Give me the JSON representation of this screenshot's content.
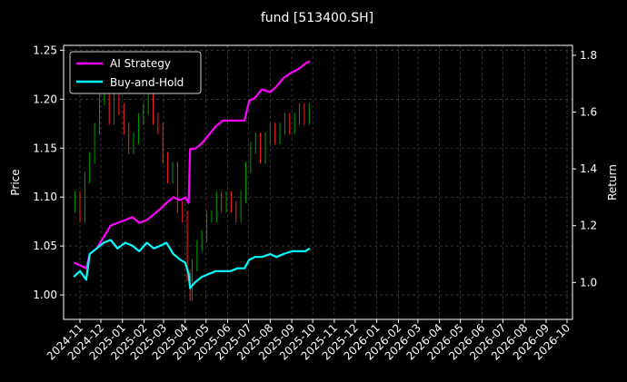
{
  "chart_data": {
    "type": "line",
    "title": "fund [513400.SH]",
    "xlabel": "",
    "ylabel": "Price",
    "ylabel_right": "Return",
    "ylim": [
      0.975,
      1.255
    ],
    "ylim_right": [
      0.87,
      1.835
    ],
    "grid": true,
    "legend_position": "top-left",
    "x_tick_labels": [
      "2024-11",
      "2024-12",
      "2025-01",
      "2025-02",
      "2025-03",
      "2025-04",
      "2025-05",
      "2025-06",
      "2025-07",
      "2025-08",
      "2025-09",
      "2025-10",
      "2025-11",
      "2025-12",
      "2026-01",
      "2026-02",
      "2026-03",
      "2026-04",
      "2026-05",
      "2026-06",
      "2026-07",
      "2026-08",
      "2026-09",
      "2026-10"
    ],
    "y_ticks_left": [
      "1.00",
      "1.05",
      "1.10",
      "1.15",
      "1.20",
      "1.25"
    ],
    "y_ticks_right": [
      "1.0",
      "1.2",
      "1.4",
      "1.6",
      "1.8"
    ],
    "series": [
      {
        "name": "AI Strategy",
        "color": "#ff00ff",
        "axis": "right",
        "x": [
          "2024-10-23",
          "2024-11-01",
          "2024-11-10",
          "2024-11-15",
          "2024-11-25",
          "2024-12-05",
          "2024-12-15",
          "2024-12-25",
          "2025-01-05",
          "2025-01-15",
          "2025-01-25",
          "2025-02-05",
          "2025-02-15",
          "2025-02-25",
          "2025-03-05",
          "2025-03-15",
          "2025-03-25",
          "2025-04-01",
          "2025-04-06",
          "2025-04-08",
          "2025-04-15",
          "2025-04-25",
          "2025-05-05",
          "2025-05-15",
          "2025-05-25",
          "2025-06-05",
          "2025-06-15",
          "2025-06-25",
          "2025-07-02",
          "2025-07-10",
          "2025-07-20",
          "2025-08-01",
          "2025-08-10",
          "2025-08-20",
          "2025-09-01",
          "2025-09-10",
          "2025-09-20",
          "2025-09-27"
        ],
        "y": [
          1.07,
          1.06,
          1.05,
          1.1,
          1.12,
          1.16,
          1.2,
          1.21,
          1.22,
          1.23,
          1.21,
          1.22,
          1.24,
          1.26,
          1.28,
          1.3,
          1.29,
          1.3,
          1.28,
          1.47,
          1.47,
          1.49,
          1.52,
          1.55,
          1.57,
          1.57,
          1.57,
          1.57,
          1.64,
          1.65,
          1.68,
          1.67,
          1.69,
          1.72,
          1.74,
          1.75,
          1.77,
          1.78
        ]
      },
      {
        "name": "Buy-and-Hold",
        "color": "#00ffff",
        "axis": "right",
        "x": [
          "2024-10-23",
          "2024-11-01",
          "2024-11-10",
          "2024-11-15",
          "2024-11-25",
          "2024-12-05",
          "2024-12-15",
          "2024-12-25",
          "2025-01-05",
          "2025-01-15",
          "2025-01-25",
          "2025-02-05",
          "2025-02-15",
          "2025-02-25",
          "2025-03-05",
          "2025-03-15",
          "2025-03-25",
          "2025-04-01",
          "2025-04-06",
          "2025-04-08",
          "2025-04-15",
          "2025-04-25",
          "2025-05-05",
          "2025-05-15",
          "2025-05-25",
          "2025-06-05",
          "2025-06-15",
          "2025-06-25",
          "2025-07-02",
          "2025-07-10",
          "2025-07-20",
          "2025-08-01",
          "2025-08-10",
          "2025-08-20",
          "2025-09-01",
          "2025-09-10",
          "2025-09-20",
          "2025-09-27"
        ],
        "y": [
          1.02,
          1.04,
          1.01,
          1.1,
          1.12,
          1.14,
          1.15,
          1.12,
          1.14,
          1.13,
          1.11,
          1.14,
          1.12,
          1.13,
          1.14,
          1.1,
          1.08,
          1.07,
          1.03,
          0.98,
          1.0,
          1.02,
          1.03,
          1.04,
          1.04,
          1.04,
          1.05,
          1.05,
          1.08,
          1.09,
          1.09,
          1.1,
          1.09,
          1.1,
          1.11,
          1.11,
          1.11,
          1.12
        ]
      }
    ],
    "price_candles": {
      "axis": "left",
      "up_color": "#00a000",
      "down_color": "#ff2020",
      "x": [
        "2024-10-25",
        "2024-11-01",
        "2024-11-08",
        "2024-11-15",
        "2024-11-22",
        "2024-11-29",
        "2024-12-06",
        "2024-12-13",
        "2024-12-20",
        "2024-12-27",
        "2025-01-03",
        "2025-01-10",
        "2025-01-17",
        "2025-01-24",
        "2025-01-31",
        "2025-02-07",
        "2025-02-14",
        "2025-02-21",
        "2025-02-28",
        "2025-03-07",
        "2025-03-14",
        "2025-03-21",
        "2025-03-28",
        "2025-04-04",
        "2025-04-08",
        "2025-04-11",
        "2025-04-18",
        "2025-04-25",
        "2025-05-02",
        "2025-05-09",
        "2025-05-16",
        "2025-05-23",
        "2025-05-30",
        "2025-06-06",
        "2025-06-13",
        "2025-06-20",
        "2025-06-27",
        "2025-07-04",
        "2025-07-11",
        "2025-07-18",
        "2025-07-25",
        "2025-08-01",
        "2025-08-08",
        "2025-08-15",
        "2025-08-22",
        "2025-08-29",
        "2025-09-05",
        "2025-09-12",
        "2025-09-19",
        "2025-09-26"
      ],
      "open": [
        1.09,
        1.1,
        1.08,
        1.12,
        1.14,
        1.17,
        1.2,
        1.21,
        1.18,
        1.2,
        1.19,
        1.17,
        1.15,
        1.16,
        1.18,
        1.19,
        1.2,
        1.18,
        1.17,
        1.14,
        1.12,
        1.13,
        1.09,
        1.08,
        1.02,
        1.0,
        1.03,
        1.05,
        1.06,
        1.08,
        1.08,
        1.1,
        1.09,
        1.1,
        1.09,
        1.08,
        1.1,
        1.13,
        1.15,
        1.16,
        1.14,
        1.16,
        1.17,
        1.16,
        1.17,
        1.18,
        1.17,
        1.18,
        1.19,
        1.18
      ],
      "close": [
        1.1,
        1.08,
        1.12,
        1.14,
        1.17,
        1.2,
        1.21,
        1.18,
        1.2,
        1.19,
        1.17,
        1.15,
        1.16,
        1.18,
        1.19,
        1.2,
        1.18,
        1.17,
        1.14,
        1.12,
        1.13,
        1.09,
        1.08,
        1.02,
        1.0,
        1.03,
        1.05,
        1.06,
        1.08,
        1.08,
        1.1,
        1.09,
        1.1,
        1.09,
        1.08,
        1.1,
        1.13,
        1.15,
        1.16,
        1.14,
        1.16,
        1.17,
        1.16,
        1.17,
        1.18,
        1.17,
        1.18,
        1.19,
        1.18,
        1.19
      ]
    }
  }
}
